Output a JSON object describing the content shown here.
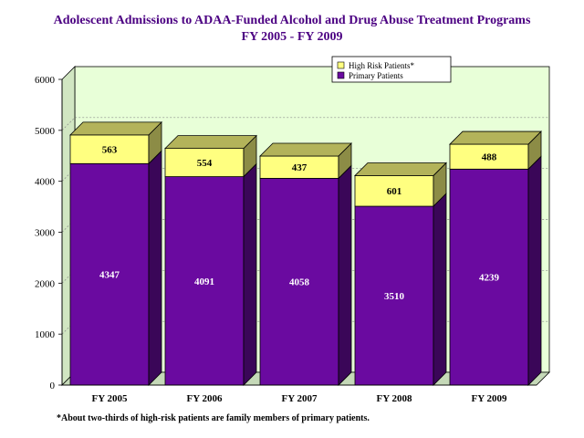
{
  "chart_data": {
    "type": "bar",
    "stacked": true,
    "title": "Adolescent Admissions to ADAA-Funded Alcohol and Drug Abuse Treatment Programs",
    "subtitle": "FY 2005 - FY 2009",
    "categories": [
      "FY 2005",
      "FY 2006",
      "FY 2007",
      "FY 2008",
      "FY 2009"
    ],
    "series": [
      {
        "name": "Primary Patients",
        "values": [
          4347,
          4091,
          4058,
          3510,
          4239
        ],
        "color": "#6a0aa0"
      },
      {
        "name": "High Risk Patients*",
        "values": [
          563,
          554,
          437,
          601,
          488
        ],
        "color": "#ffff80"
      }
    ],
    "yticks": [
      0,
      1000,
      2000,
      3000,
      4000,
      5000,
      6000
    ],
    "ylim": [
      0,
      6000
    ],
    "xlabel": "",
    "ylabel": "",
    "legend_position": "top-right",
    "plot_background": "#e8ffd8",
    "footnote": "*About two-thirds of high-risk patients are family members of primary patients."
  }
}
